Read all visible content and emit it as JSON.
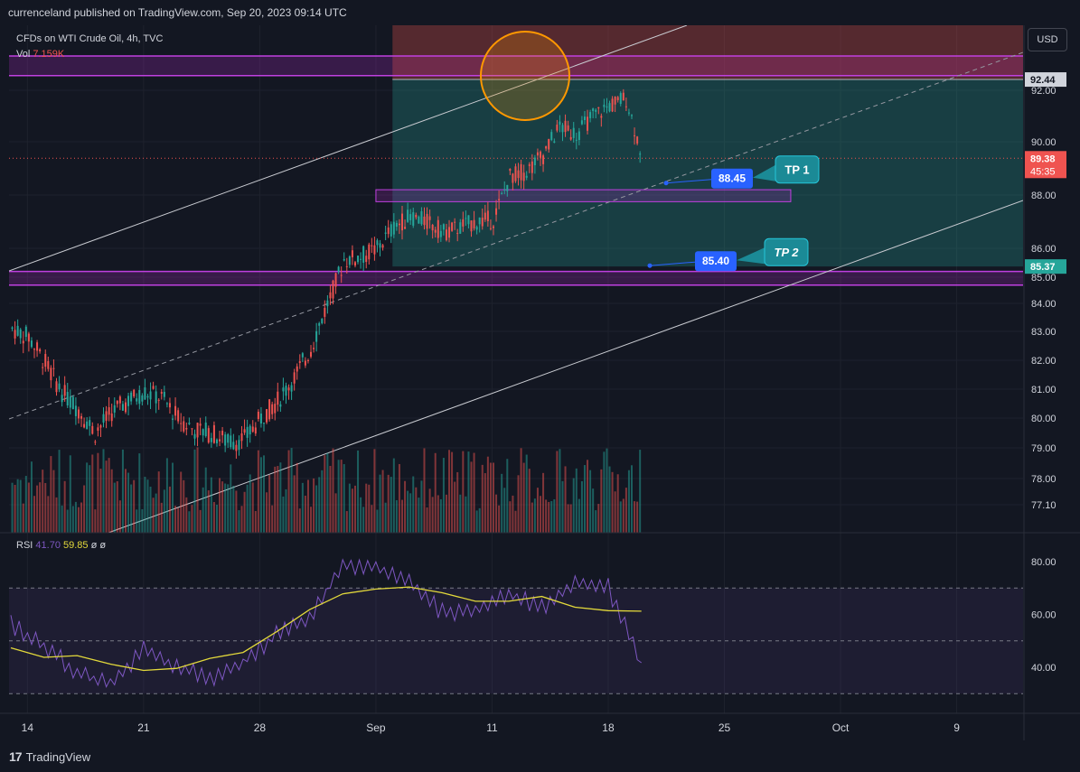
{
  "header": {
    "text": "currenceland published on TradingView.com, Sep 20, 2023 09:14 UTC"
  },
  "legend": {
    "symbol": "CFDs on WTI Crude Oil, 4h, TVC",
    "vol_label": "Vol",
    "vol_value": "7.159K",
    "vol_color": "#ef5350"
  },
  "currency_button": "USD",
  "rsi_legend": {
    "label": "RSI",
    "value1": "41.70",
    "value1_color": "#7e57c2",
    "value2": "59.85",
    "value2_color": "#e3d93b",
    "dash1": "ø",
    "dash2": "ø"
  },
  "price_axis": {
    "ticks": [
      "92.00",
      "90.00",
      "88.00",
      "86.00",
      "85.00",
      "84.00",
      "83.00",
      "82.00",
      "81.00",
      "80.00",
      "79.00",
      "78.00",
      "77.10"
    ],
    "badges": [
      {
        "label": "92.44",
        "bg": "#d1d4dc",
        "fg": "#131722"
      },
      {
        "label": "89.38",
        "sub": "45:35",
        "bg": "#ef5350",
        "fg": "#ffffff"
      },
      {
        "label": "85.37",
        "bg": "#26a69a",
        "fg": "#ffffff"
      }
    ]
  },
  "rsi_axis": {
    "ticks": [
      "80.00",
      "60.00",
      "40.00"
    ]
  },
  "time_axis": {
    "ticks": [
      "14",
      "21",
      "28",
      "Sep",
      "11",
      "18",
      "25",
      "Oct",
      "9"
    ]
  },
  "annotations": {
    "tp1_label": "TP 1",
    "tp1_price": "88.45",
    "tp2_label": "TP 2",
    "tp2_price": "85.40"
  },
  "footer": {
    "logo": "17",
    "brand": "TradingView"
  },
  "colors": {
    "background": "#131722",
    "up": "#26a69a",
    "down": "#ef5350",
    "zone_purple": "#9c27b0",
    "zone_teal": "#26a69a",
    "rsi_line": "#7e57c2",
    "rsi_ma": "#e3d93b",
    "badge_blue": "#2962ff"
  },
  "chart_data": {
    "type": "candlestick",
    "title": "CFDs on WTI Crude Oil, 4h, TVC",
    "x_range": [
      "2023-08-13",
      "2023-10-13"
    ],
    "ylim": [
      76.4,
      93.6
    ],
    "price_series": [
      {
        "date": "2023-08-13",
        "close": 83.1
      },
      {
        "date": "2023-08-14",
        "close": 82.8
      },
      {
        "date": "2023-08-15",
        "close": 81.9
      },
      {
        "date": "2023-08-16",
        "close": 80.9
      },
      {
        "date": "2023-08-17",
        "close": 80.3
      },
      {
        "date": "2023-08-18",
        "close": 79.5
      },
      {
        "date": "2023-08-19",
        "close": 80.2
      },
      {
        "date": "2023-08-20",
        "close": 80.6
      },
      {
        "date": "2023-08-21",
        "close": 80.9
      },
      {
        "date": "2023-08-22",
        "close": 80.7
      },
      {
        "date": "2023-08-23",
        "close": 80.0
      },
      {
        "date": "2023-08-24",
        "close": 79.6
      },
      {
        "date": "2023-08-25",
        "close": 79.5
      },
      {
        "date": "2023-08-26",
        "close": 79.2
      },
      {
        "date": "2023-08-27",
        "close": 79.3
      },
      {
        "date": "2023-08-28",
        "close": 80.0
      },
      {
        "date": "2023-08-29",
        "close": 80.6
      },
      {
        "date": "2023-08-30",
        "close": 81.4
      },
      {
        "date": "2023-08-31",
        "close": 82.4
      },
      {
        "date": "2023-09-01",
        "close": 84.0
      },
      {
        "date": "2023-09-02",
        "close": 85.6
      },
      {
        "date": "2023-09-03",
        "close": 85.7
      },
      {
        "date": "2023-09-04",
        "close": 86.0
      },
      {
        "date": "2023-09-05",
        "close": 86.8
      },
      {
        "date": "2023-09-06",
        "close": 87.2
      },
      {
        "date": "2023-09-07",
        "close": 87.0
      },
      {
        "date": "2023-09-08",
        "close": 86.6
      },
      {
        "date": "2023-09-09",
        "close": 86.8
      },
      {
        "date": "2023-09-10",
        "close": 87.0
      },
      {
        "date": "2023-09-11",
        "close": 87.1
      },
      {
        "date": "2023-09-12",
        "close": 88.7
      },
      {
        "date": "2023-09-13",
        "close": 88.9
      },
      {
        "date": "2023-09-14",
        "close": 89.5
      },
      {
        "date": "2023-09-15",
        "close": 90.6
      },
      {
        "date": "2023-09-16",
        "close": 90.3
      },
      {
        "date": "2023-09-17",
        "close": 91.0
      },
      {
        "date": "2023-09-18",
        "close": 91.4
      },
      {
        "date": "2023-09-19",
        "close": 91.7
      },
      {
        "date": "2023-09-20",
        "close": 89.38
      }
    ],
    "horizontal_zones": [
      {
        "name": "resistance zone",
        "from": 92.6,
        "to": 93.4
      },
      {
        "name": "support zone",
        "from": 84.7,
        "to": 85.2
      }
    ],
    "position_box": {
      "entry_top": 92.44,
      "target": 85.37
    },
    "targets": [
      {
        "label": "TP 1",
        "price": 88.45
      },
      {
        "label": "TP 2",
        "price": 85.4
      }
    ],
    "rsi": {
      "ylim": [
        25,
        90
      ],
      "levels": [
        70,
        50,
        30
      ],
      "series": [
        {
          "date": "2023-08-13",
          "value": 56
        },
        {
          "date": "2023-08-15",
          "value": 48
        },
        {
          "date": "2023-08-17",
          "value": 38
        },
        {
          "date": "2023-08-19",
          "value": 33
        },
        {
          "date": "2023-08-21",
          "value": 47
        },
        {
          "date": "2023-08-23",
          "value": 40
        },
        {
          "date": "2023-08-25",
          "value": 36
        },
        {
          "date": "2023-08-27",
          "value": 42
        },
        {
          "date": "2023-08-29",
          "value": 52
        },
        {
          "date": "2023-08-31",
          "value": 58
        },
        {
          "date": "2023-09-02",
          "value": 79
        },
        {
          "date": "2023-09-04",
          "value": 78
        },
        {
          "date": "2023-09-06",
          "value": 72
        },
        {
          "date": "2023-09-08",
          "value": 61
        },
        {
          "date": "2023-09-10",
          "value": 62
        },
        {
          "date": "2023-09-12",
          "value": 68
        },
        {
          "date": "2023-09-14",
          "value": 62
        },
        {
          "date": "2023-09-16",
          "value": 72
        },
        {
          "date": "2023-09-18",
          "value": 70
        },
        {
          "date": "2023-09-20",
          "value": 41.7
        }
      ]
    },
    "volume": {
      "last": "7.159K"
    }
  }
}
